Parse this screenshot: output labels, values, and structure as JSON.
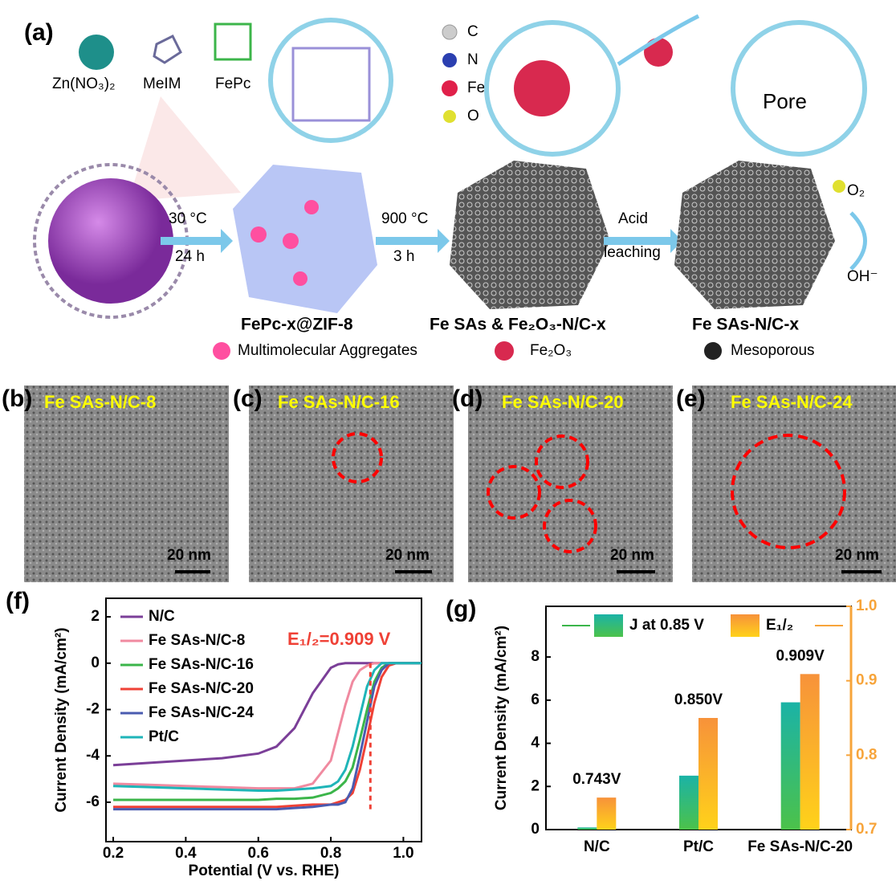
{
  "schematic": {
    "panel": "(a)",
    "reagents": [
      "Zn(NO₃)₂",
      "MeIM",
      "FePc"
    ],
    "atoms": [
      "C",
      "N",
      "Fe",
      "O"
    ],
    "pore": "Pore",
    "step1": [
      "30 °C",
      "24 h"
    ],
    "step2": [
      "900 °C",
      "3 h"
    ],
    "step3": [
      "Acid",
      "leaching"
    ],
    "o2": "O₂",
    "oh": "OH⁻",
    "products": [
      "FePc-x@ZIF-8",
      "Fe SAs & Fe₂O₃-N/C-x",
      "Fe SAs-N/C-x"
    ],
    "legend": [
      "Multimolecular Aggregates",
      "Fe₂O₃",
      "Mesoporous"
    ]
  },
  "tem_panels": [
    {
      "panel": "(b)",
      "label": "Fe SAs-N/C-8",
      "scale": "20 nm"
    },
    {
      "panel": "(c)",
      "label": "Fe SAs-N/C-16",
      "scale": "20 nm"
    },
    {
      "panel": "(d)",
      "label": "Fe SAs-N/C-20",
      "scale": "20 nm"
    },
    {
      "panel": "(e)",
      "label": "Fe SAs-N/C-24",
      "scale": "20 nm"
    }
  ],
  "chart_data": [
    {
      "type": "line",
      "panel": "(f)",
      "x_label": "Potential (V vs. RHE)",
      "y_label": "Current Density (mA/cm²)",
      "annotation": "E₁/₂=0.909 V",
      "vline": 0.909,
      "x": [
        0.2,
        0.3,
        0.4,
        0.5,
        0.6,
        0.65,
        0.7,
        0.75,
        0.8,
        0.82,
        0.84,
        0.86,
        0.88,
        0.9,
        0.92,
        0.94,
        0.96,
        0.98,
        1.0,
        1.05
      ],
      "series": [
        {
          "name": "N/C",
          "color": "#7b3f98",
          "values": [
            -4.4,
            -4.3,
            -4.2,
            -4.1,
            -3.9,
            -3.6,
            -2.8,
            -1.3,
            -0.2,
            -0.05,
            0,
            0,
            0,
            0,
            0,
            0,
            0,
            0,
            0,
            0
          ]
        },
        {
          "name": "Fe SAs-N/C-8",
          "color": "#f08aa0",
          "values": [
            -5.2,
            -5.25,
            -5.3,
            -5.35,
            -5.4,
            -5.4,
            -5.4,
            -5.2,
            -4.2,
            -3.0,
            -1.8,
            -0.8,
            -0.3,
            -0.1,
            0,
            0,
            0,
            0,
            0,
            0
          ]
        },
        {
          "name": "Fe SAs-N/C-16",
          "color": "#3bb54a",
          "values": [
            -5.9,
            -5.9,
            -5.9,
            -5.9,
            -5.9,
            -5.85,
            -5.85,
            -5.8,
            -5.6,
            -5.4,
            -5.1,
            -4.5,
            -3.3,
            -2.0,
            -0.8,
            -0.2,
            0,
            0,
            0,
            0
          ]
        },
        {
          "name": "Fe SAs-N/C-20",
          "color": "#ef4136",
          "values": [
            -6.2,
            -6.2,
            -6.2,
            -6.2,
            -6.2,
            -6.2,
            -6.15,
            -6.1,
            -6.1,
            -6.0,
            -5.9,
            -5.6,
            -4.6,
            -3.2,
            -1.7,
            -0.6,
            -0.1,
            0,
            0,
            0
          ]
        },
        {
          "name": "Fe SAs-N/C-24",
          "color": "#4a5bb0",
          "values": [
            -6.3,
            -6.3,
            -6.3,
            -6.3,
            -6.3,
            -6.3,
            -6.25,
            -6.2,
            -6.1,
            -6.1,
            -6.0,
            -5.4,
            -4.0,
            -2.5,
            -1.0,
            -0.3,
            0,
            0,
            0,
            0
          ]
        },
        {
          "name": "Pt/C",
          "color": "#1fb5b8",
          "values": [
            -5.3,
            -5.35,
            -5.4,
            -5.45,
            -5.5,
            -5.5,
            -5.45,
            -5.4,
            -5.3,
            -5.1,
            -4.6,
            -3.6,
            -2.3,
            -1.0,
            -0.3,
            0,
            0,
            0,
            0,
            0
          ]
        }
      ],
      "xlim": [
        0.18,
        1.05
      ],
      "xticks": [
        0.2,
        0.4,
        0.6,
        0.8,
        {
          "value": 1.0,
          "label": "1.0"
        }
      ],
      "ylim": [
        -7.7,
        2.8
      ],
      "yticks": [
        2,
        0,
        -2,
        -4,
        -6
      ]
    },
    {
      "type": "bar",
      "panel": "(g)",
      "y_label": "Current Density (mA/cm²)",
      "categories": [
        "N/C",
        "Pt/C",
        "Fe SAs-N/C-20"
      ],
      "series": [
        {
          "name": "J at 0.85 V",
          "color": "#1bb3a6",
          "values": [
            0.1,
            2.5,
            5.9
          ]
        },
        {
          "name": "E₁/₂",
          "color": "#f7a43a",
          "axis": "y2",
          "values": [
            0.743,
            0.85,
            0.909
          ],
          "value_labels": [
            "0.743V",
            "0.850V",
            "0.909V"
          ]
        }
      ],
      "ylim": [
        0,
        10.35
      ],
      "yticks": [
        0,
        2,
        4,
        6,
        8
      ],
      "y2lim": [
        0.7,
        1.0
      ],
      "y2ticks": [
        0.7,
        0.8,
        0.9,
        {
          "value": 1.0,
          "label": "1.0"
        }
      ]
    }
  ]
}
